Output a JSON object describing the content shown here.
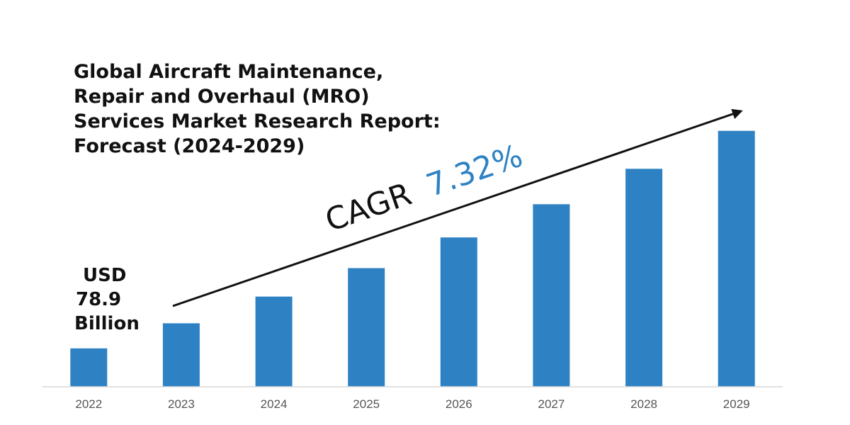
{
  "chart_data": {
    "type": "bar",
    "title_lines": [
      "Global Aircraft Maintenance,",
      "Repair and Overhaul (MRO)",
      "Services Market Research Report:",
      "Forecast (2024-2029)"
    ],
    "categories": [
      "2022",
      "2023",
      "2024",
      "2025",
      "2026",
      "2027",
      "2028",
      "2029"
    ],
    "values": [
      78.9,
      84.7,
      90.9,
      97.5,
      104.6,
      112.3,
      120.5,
      129.3
    ],
    "ylim": [
      70,
      135
    ],
    "grid": false,
    "bar_color": "#2e82c4",
    "start_label": [
      "USD",
      "78.9",
      "Billion"
    ],
    "annotation": {
      "prefix": "CAGR",
      "value": "7.32%",
      "prefix_color": "#111111",
      "value_color": "#2e82c4"
    }
  }
}
